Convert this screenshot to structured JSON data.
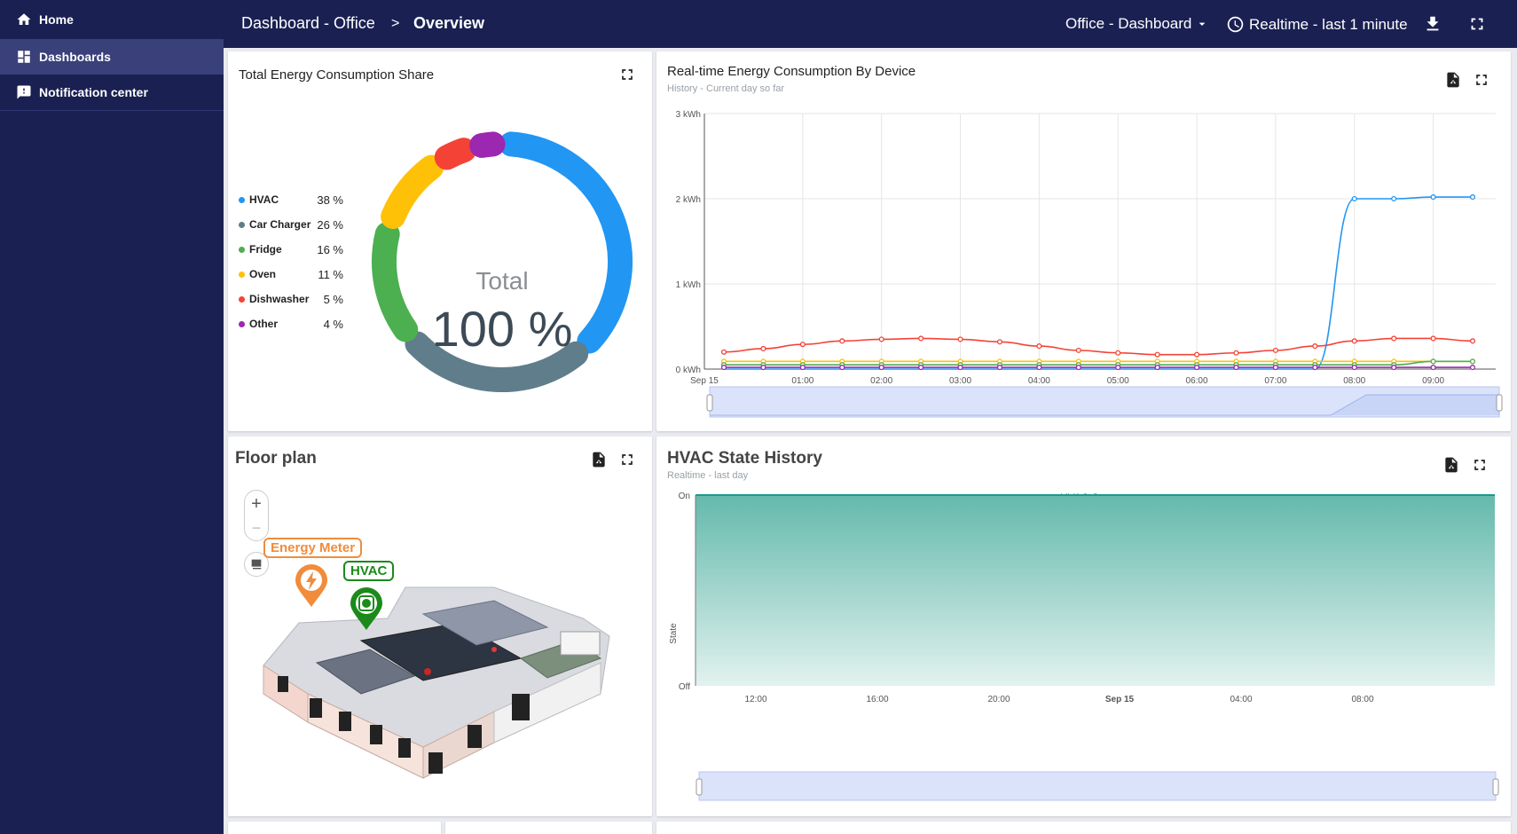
{
  "sidebar": {
    "items": [
      {
        "label": "Home",
        "icon": "home-icon"
      },
      {
        "label": "Dashboards",
        "icon": "dashboards-icon"
      },
      {
        "label": "Notification center",
        "icon": "notification-icon"
      }
    ]
  },
  "topbar": {
    "breadcrumb_parent": "Dashboard - Office",
    "breadcrumb_sep": ">",
    "breadcrumb_current": "Overview",
    "dashboard_select": "Office - Dashboard",
    "timewindow": "Realtime - last 1 minute"
  },
  "energy_share": {
    "title": "Total Energy Consumption Share",
    "center_label": "Total",
    "center_value": "100 %",
    "items": [
      {
        "label": "HVAC",
        "value": "38 %",
        "color": "#2196f3"
      },
      {
        "label": "Car Charger",
        "value": "26 %",
        "color": "#607d8b"
      },
      {
        "label": "Fridge",
        "value": "16 %",
        "color": "#4caf50"
      },
      {
        "label": "Oven",
        "value": "11 %",
        "color": "#ffc107"
      },
      {
        "label": "Dishwasher",
        "value": "5 %",
        "color": "#f44336"
      },
      {
        "label": "Other",
        "value": "4 %",
        "color": "#9c27b0"
      }
    ]
  },
  "realtime_chart": {
    "title": "Real-time Energy Consumption By Device",
    "subtitle": "History - Current day so far"
  },
  "floor_plan": {
    "title": "Floor plan",
    "zoom_in": "+",
    "zoom_out": "−",
    "markers": [
      {
        "label": "Energy Meter",
        "color": "#f08c3c"
      },
      {
        "label": "HVAC",
        "color": "#1b8a1b"
      }
    ]
  },
  "hvac_chart": {
    "title": "HVAC State History",
    "subtitle": "Realtime - last day",
    "legend": "HVAC State",
    "ylabel": "State"
  },
  "chart_data": [
    {
      "type": "line",
      "title": "Real-time Energy Consumption By Device",
      "x": [
        "Sep 15",
        "00:30",
        "01:00",
        "01:30",
        "02:00",
        "02:30",
        "03:00",
        "03:30",
        "04:00",
        "04:30",
        "05:00",
        "05:30",
        "06:00",
        "06:30",
        "07:00",
        "07:30",
        "08:00",
        "08:30",
        "09:00",
        "09:30"
      ],
      "xticks": [
        "Sep 15",
        "01:00",
        "02:00",
        "03:00",
        "04:00",
        "05:00",
        "06:00",
        "07:00",
        "08:00",
        "09:00"
      ],
      "yticks": [
        "0 kWh",
        "1 kWh",
        "2 kWh",
        "3 kWh"
      ],
      "ylim": [
        0,
        3
      ],
      "grid": true,
      "series": [
        {
          "color": "#2196f3",
          "values": [
            0,
            0,
            0,
            0,
            0,
            0,
            0,
            0,
            0,
            0,
            0,
            0,
            0,
            0,
            0,
            0,
            2.0,
            2.0,
            2.02,
            2.02
          ]
        },
        {
          "color": "#f44336",
          "values": [
            0.2,
            0.24,
            0.29,
            0.33,
            0.35,
            0.36,
            0.35,
            0.32,
            0.27,
            0.22,
            0.19,
            0.17,
            0.17,
            0.19,
            0.22,
            0.27,
            0.33,
            0.36,
            0.36,
            0.33
          ]
        },
        {
          "color": "#ffc107",
          "values": [
            0.09,
            0.09,
            0.09,
            0.09,
            0.09,
            0.09,
            0.09,
            0.09,
            0.09,
            0.09,
            0.09,
            0.09,
            0.09,
            0.09,
            0.09,
            0.09,
            0.09,
            0.09,
            0.09,
            0.09
          ]
        },
        {
          "color": "#4caf50",
          "values": [
            0.05,
            0.05,
            0.05,
            0.05,
            0.05,
            0.05,
            0.05,
            0.05,
            0.05,
            0.05,
            0.05,
            0.05,
            0.05,
            0.05,
            0.05,
            0.05,
            0.05,
            0.05,
            0.09,
            0.09
          ]
        },
        {
          "color": "#9c27b0",
          "values": [
            0.02,
            0.02,
            0.02,
            0.02,
            0.02,
            0.02,
            0.02,
            0.02,
            0.02,
            0.02,
            0.02,
            0.02,
            0.02,
            0.02,
            0.02,
            0.02,
            0.02,
            0.02,
            0.02,
            0.02
          ]
        }
      ]
    },
    {
      "type": "area",
      "title": "HVAC State History",
      "xticks": [
        "12:00",
        "16:00",
        "20:00",
        "Sep 15",
        "04:00",
        "08:00"
      ],
      "yticks": [
        "Off",
        "On"
      ],
      "series": [
        {
          "name": "HVAC State",
          "color": "#1a9b8c",
          "values": [
            1,
            1
          ]
        }
      ]
    }
  ]
}
